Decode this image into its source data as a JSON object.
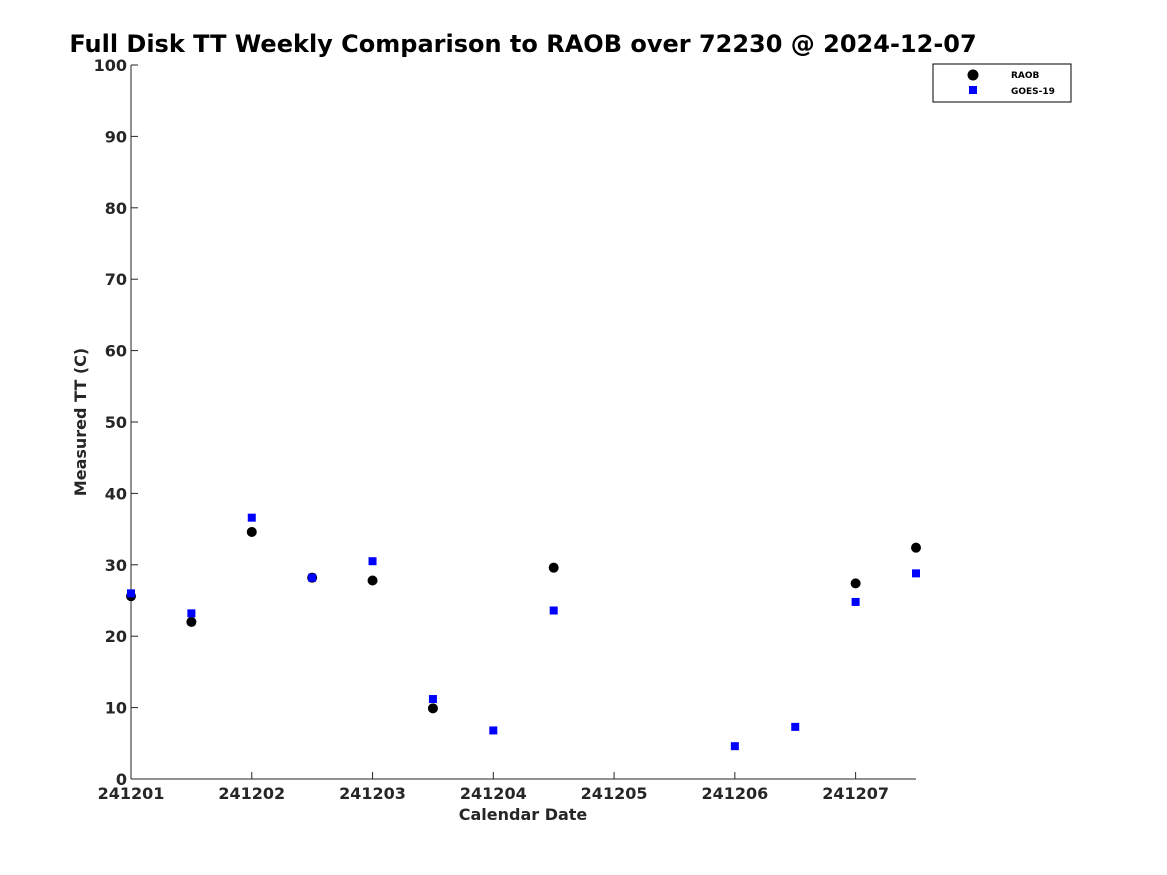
{
  "chart_data": {
    "type": "scatter",
    "title": "Full Disk TT Weekly Comparison to RAOB over 72230 @ 2024-12-07",
    "xlabel": "Calendar Date",
    "ylabel": "Measured TT (C)",
    "xlim": [
      0,
      6.5
    ],
    "ylim": [
      0,
      100
    ],
    "x_ticks": [
      {
        "value": 0,
        "label": "241201"
      },
      {
        "value": 1,
        "label": "241202"
      },
      {
        "value": 2,
        "label": "241203"
      },
      {
        "value": 3,
        "label": "241204"
      },
      {
        "value": 4,
        "label": "241205"
      },
      {
        "value": 5,
        "label": "241206"
      },
      {
        "value": 6,
        "label": "241207"
      }
    ],
    "y_ticks": [
      0,
      10,
      20,
      30,
      40,
      50,
      60,
      70,
      80,
      90,
      100
    ],
    "grid": false,
    "legend_position": "top-right",
    "series": [
      {
        "name": "RAOB",
        "marker": "circle",
        "color": "#000000",
        "points": [
          {
            "x": 0.0,
            "y": 25.6
          },
          {
            "x": 0.5,
            "y": 22.0
          },
          {
            "x": 1.0,
            "y": 34.6
          },
          {
            "x": 1.5,
            "y": 28.2
          },
          {
            "x": 2.0,
            "y": 27.8
          },
          {
            "x": 2.5,
            "y": 9.9
          },
          {
            "x": 3.5,
            "y": 29.6
          },
          {
            "x": 6.0,
            "y": 27.4
          },
          {
            "x": 6.5,
            "y": 32.4
          }
        ]
      },
      {
        "name": "GOES-19",
        "marker": "square",
        "color": "#0000ff",
        "points": [
          {
            "x": 0.0,
            "y": 26.0
          },
          {
            "x": 0.5,
            "y": 23.2
          },
          {
            "x": 1.0,
            "y": 36.6
          },
          {
            "x": 1.5,
            "y": 28.2
          },
          {
            "x": 2.0,
            "y": 30.5
          },
          {
            "x": 2.5,
            "y": 11.2
          },
          {
            "x": 3.0,
            "y": 6.8
          },
          {
            "x": 3.5,
            "y": 23.6
          },
          {
            "x": 5.0,
            "y": 4.6
          },
          {
            "x": 5.5,
            "y": 7.3
          },
          {
            "x": 6.0,
            "y": 24.8
          },
          {
            "x": 6.5,
            "y": 28.8
          }
        ]
      }
    ]
  }
}
